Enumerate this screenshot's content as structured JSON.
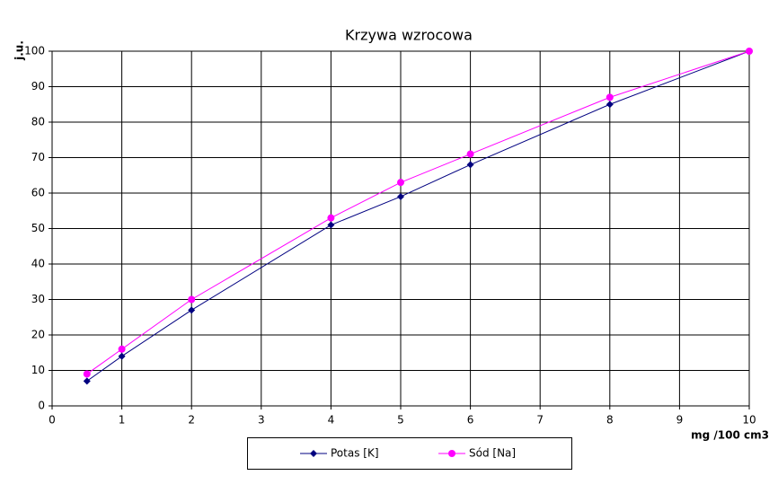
{
  "chart_data": {
    "type": "line",
    "title": "Krzywa wzrocowa",
    "x_label": "mg /100 cm3",
    "y_label": "j.u.",
    "x": [
      0.5,
      1,
      2,
      4,
      5,
      6,
      8,
      10
    ],
    "series": [
      {
        "name": "Potas [K]",
        "color": "#000080",
        "marker": "diamond",
        "values": [
          7,
          14,
          27,
          51,
          59,
          68,
          85,
          100
        ]
      },
      {
        "name": "Sód [Na]",
        "color": "#ff00ff",
        "marker": "circle",
        "values": [
          9,
          16,
          30,
          53,
          63,
          71,
          87,
          100
        ]
      }
    ],
    "xlim": [
      0,
      10
    ],
    "xticks": [
      0,
      1,
      2,
      3,
      4,
      5,
      6,
      7,
      8,
      9,
      10
    ],
    "ylim": [
      0,
      100
    ],
    "yticks": [
      0,
      10,
      20,
      30,
      40,
      50,
      60,
      70,
      80,
      90,
      100
    ],
    "grid": true,
    "legend": "bottom"
  }
}
